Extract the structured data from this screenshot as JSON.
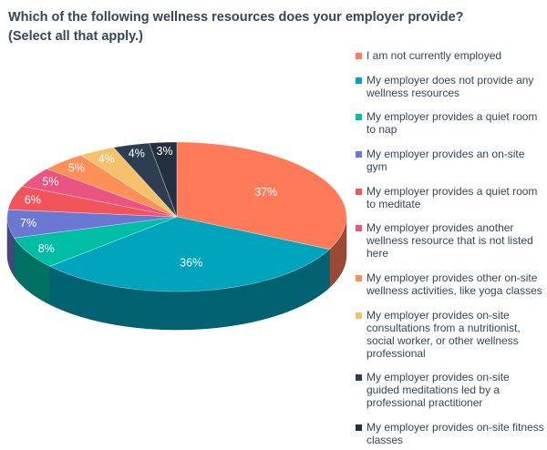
{
  "chart_data": {
    "type": "pie",
    "title": "Which of the following wellness resources does your employer provide?",
    "subtitle": "(Select all that apply.)",
    "legend_position": "right",
    "style": "3d",
    "slices": [
      {
        "label": "I am not currently employed",
        "value": 37,
        "display": "37%",
        "color": "#FF7A59"
      },
      {
        "label": "My employer does not provide any wellness resources",
        "value": 36,
        "display": "36%",
        "color": "#00A4BD"
      },
      {
        "label": "My employer provides a quiet room to nap",
        "value": 8,
        "display": "8%",
        "color": "#00BDA5"
      },
      {
        "label": "My employer provides an on-site gym",
        "value": 7,
        "display": "7%",
        "color": "#6A78D1"
      },
      {
        "label": "My employer provides a quiet room to meditate",
        "value": 6,
        "display": "6%",
        "color": "#F2545B"
      },
      {
        "label": "My employer provides another wellness resource that is not listed here",
        "value": 5,
        "display": "5%",
        "color": "#EA5480"
      },
      {
        "label": "My employer provides other on-site wellness activities, like yoga classes",
        "value": 5,
        "display": "5%",
        "color": "#FF8F59"
      },
      {
        "label": "My employer provides on-site consultations from a nutritionist, social worker, or other wellness professional",
        "value": 4,
        "display": "4%",
        "color": "#F5C26B"
      },
      {
        "label": "My employer provides on-site guided meditations led by a professional practitioner",
        "value": 4,
        "display": "4%",
        "color": "#2D3E50"
      },
      {
        "label": "My employer provides on-site fitness classes",
        "value": 3,
        "display": "3%",
        "color": "#22303F"
      }
    ]
  }
}
